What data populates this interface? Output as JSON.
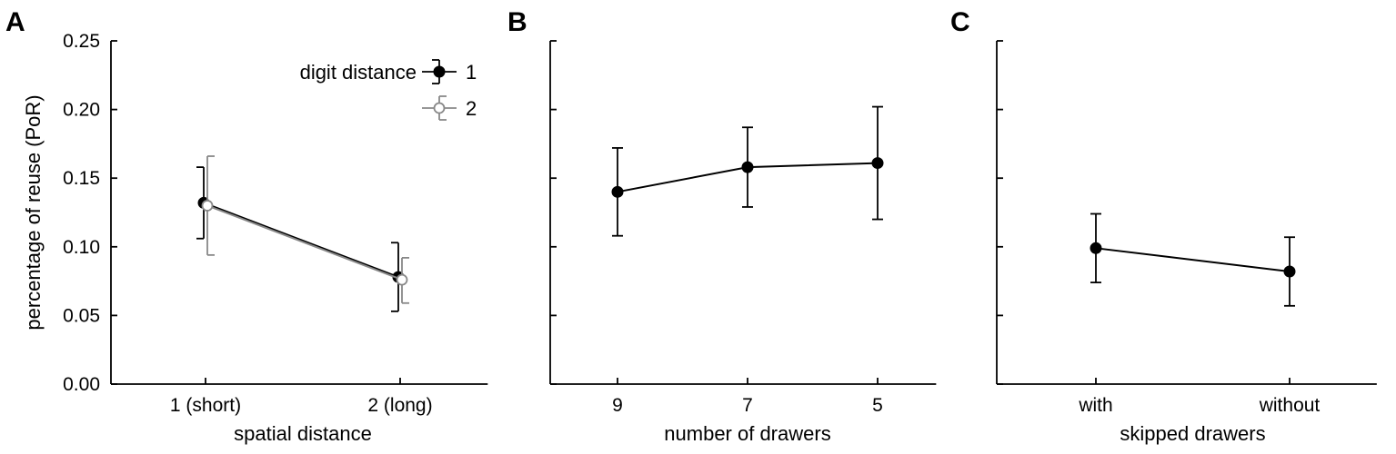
{
  "chart_data": [
    {
      "panel_letter": "A",
      "type": "line",
      "categories": [
        "1 (short)",
        "2 (long)"
      ],
      "xlabel": "spatial distance",
      "ylabel": "percentage of reuse (PoR)",
      "ylim": [
        0,
        0.25
      ],
      "yticks": [
        "0.00",
        "0.05",
        "0.10",
        "0.15",
        "0.20",
        "0.25"
      ],
      "error_bars": true,
      "legend": {
        "title": "digit distance",
        "placement": "top-right",
        "entries": [
          "1",
          "2"
        ]
      },
      "series": [
        {
          "name": "1",
          "marker": "filled",
          "color": "#000000",
          "values": [
            0.132,
            0.078
          ],
          "err_low": [
            0.106,
            0.053
          ],
          "err_high": [
            0.158,
            0.103
          ]
        },
        {
          "name": "2",
          "marker": "open",
          "color": "#888888",
          "values": [
            0.13,
            0.076
          ],
          "err_low": [
            0.094,
            0.059
          ],
          "err_high": [
            0.166,
            0.092
          ]
        }
      ]
    },
    {
      "panel_letter": "B",
      "type": "line",
      "categories": [
        "9",
        "7",
        "5"
      ],
      "xlabel": "number of drawers",
      "ylabel": "",
      "ylim": [
        0,
        0.25
      ],
      "error_bars": true,
      "series": [
        {
          "marker": "filled",
          "color": "#000000",
          "values": [
            0.14,
            0.158,
            0.161
          ],
          "err_low": [
            0.108,
            0.129,
            0.12
          ],
          "err_high": [
            0.172,
            0.187,
            0.202
          ]
        }
      ]
    },
    {
      "panel_letter": "C",
      "type": "line",
      "categories": [
        "with",
        "without"
      ],
      "xlabel": "skipped drawers",
      "ylabel": "",
      "ylim": [
        0,
        0.25
      ],
      "error_bars": true,
      "series": [
        {
          "marker": "filled",
          "color": "#000000",
          "values": [
            0.099,
            0.082
          ],
          "err_low": [
            0.074,
            0.057
          ],
          "err_high": [
            0.124,
            0.107
          ]
        }
      ]
    }
  ]
}
